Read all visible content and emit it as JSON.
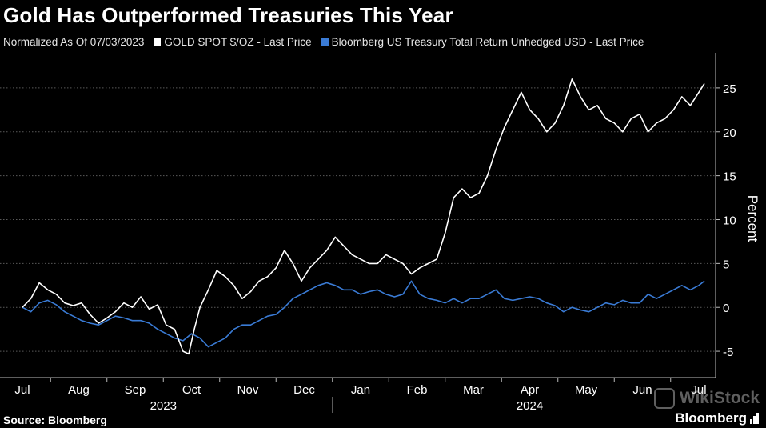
{
  "chart_data": {
    "type": "line",
    "title": "Gold Has Outperformed Treasuries This Year",
    "subtitle": "Normalized As Of 07/03/2023",
    "ylabel": "Percent",
    "ylim": [
      -8,
      29
    ],
    "yticks": [
      -5,
      0,
      5,
      10,
      15,
      20,
      25
    ],
    "grid": true,
    "legend_position": "top",
    "x_months": [
      "Jul",
      "Aug",
      "Sep",
      "Oct",
      "Nov",
      "Dec",
      "Jan",
      "Feb",
      "Mar",
      "Apr",
      "May",
      "Jun",
      "Jul"
    ],
    "x_years": [
      "2023",
      "2024"
    ],
    "x_range_months": [
      0,
      12.3
    ],
    "series": [
      {
        "name": "GOLD SPOT $/OZ - Last Price",
        "color": "#ffffff",
        "x": [
          0,
          0.15,
          0.3,
          0.45,
          0.6,
          0.75,
          0.9,
          1.05,
          1.2,
          1.35,
          1.5,
          1.65,
          1.8,
          1.95,
          2.1,
          2.25,
          2.4,
          2.55,
          2.7,
          2.85,
          2.95,
          3.05,
          3.15,
          3.3,
          3.45,
          3.6,
          3.75,
          3.9,
          4.05,
          4.2,
          4.35,
          4.5,
          4.65,
          4.8,
          4.95,
          5.1,
          5.25,
          5.4,
          5.55,
          5.7,
          5.85,
          6.0,
          6.15,
          6.3,
          6.45,
          6.6,
          6.75,
          6.9,
          7.05,
          7.2,
          7.35,
          7.5,
          7.65,
          7.8,
          7.95,
          8.1,
          8.25,
          8.4,
          8.55,
          8.7,
          8.85,
          9.0,
          9.15,
          9.3,
          9.45,
          9.6,
          9.75,
          9.9,
          10.05,
          10.2,
          10.35,
          10.5,
          10.65,
          10.8,
          10.95,
          11.1,
          11.25,
          11.4,
          11.55,
          11.7,
          11.85,
          12.0,
          12.1
        ],
        "values": [
          0,
          1.0,
          2.8,
          2.0,
          1.5,
          0.5,
          0.2,
          0.5,
          -0.8,
          -1.8,
          -1.2,
          -0.5,
          0.5,
          0.0,
          1.2,
          -0.2,
          0.3,
          -2.0,
          -2.5,
          -5.0,
          -5.3,
          -2.5,
          0.0,
          2.0,
          4.2,
          3.5,
          2.5,
          1.0,
          1.8,
          3.0,
          3.5,
          4.5,
          6.5,
          5.0,
          3.0,
          4.5,
          5.5,
          6.5,
          8.0,
          7.0,
          6.0,
          5.5,
          5.0,
          5.0,
          6.0,
          5.5,
          5.0,
          3.8,
          4.5,
          5.0,
          5.5,
          8.5,
          12.5,
          13.5,
          12.5,
          13.0,
          15.0,
          18.0,
          20.5,
          22.5,
          24.5,
          22.5,
          21.5,
          20.0,
          21.0,
          23.0,
          26.0,
          24.0,
          22.5,
          23.0,
          21.5,
          21.0,
          20.0,
          21.5,
          22.0,
          20.0,
          21.0,
          21.5,
          22.5,
          24.0,
          23.0,
          24.5,
          25.5
        ]
      },
      {
        "name": "Bloomberg US Treasury Total Return Unhedged USD - Last Price",
        "color": "#3a7bd5",
        "x": [
          0,
          0.15,
          0.3,
          0.45,
          0.6,
          0.75,
          0.9,
          1.05,
          1.2,
          1.35,
          1.5,
          1.65,
          1.8,
          1.95,
          2.1,
          2.25,
          2.4,
          2.55,
          2.7,
          2.85,
          3.0,
          3.15,
          3.3,
          3.45,
          3.6,
          3.75,
          3.9,
          4.05,
          4.2,
          4.35,
          4.5,
          4.65,
          4.8,
          4.95,
          5.1,
          5.25,
          5.4,
          5.55,
          5.7,
          5.85,
          6.0,
          6.15,
          6.3,
          6.45,
          6.6,
          6.75,
          6.9,
          7.05,
          7.2,
          7.35,
          7.5,
          7.65,
          7.8,
          7.95,
          8.1,
          8.25,
          8.4,
          8.55,
          8.7,
          8.85,
          9.0,
          9.15,
          9.3,
          9.45,
          9.6,
          9.75,
          9.9,
          10.05,
          10.2,
          10.35,
          10.5,
          10.65,
          10.8,
          10.95,
          11.1,
          11.25,
          11.4,
          11.55,
          11.7,
          11.85,
          12.0,
          12.1
        ],
        "values": [
          0,
          -0.5,
          0.5,
          0.8,
          0.3,
          -0.5,
          -1.0,
          -1.5,
          -1.8,
          -2.0,
          -1.5,
          -1.0,
          -1.2,
          -1.5,
          -1.5,
          -1.8,
          -2.5,
          -3.0,
          -3.5,
          -3.8,
          -3.0,
          -3.5,
          -4.5,
          -4.0,
          -3.5,
          -2.5,
          -2.0,
          -2.0,
          -1.5,
          -1.0,
          -0.8,
          0.0,
          1.0,
          1.5,
          2.0,
          2.5,
          2.8,
          2.5,
          2.0,
          2.0,
          1.5,
          1.8,
          2.0,
          1.5,
          1.2,
          1.5,
          3.0,
          1.5,
          1.0,
          0.8,
          0.5,
          1.0,
          0.5,
          1.0,
          1.0,
          1.5,
          2.0,
          1.0,
          0.8,
          1.0,
          1.2,
          1.0,
          0.5,
          0.2,
          -0.5,
          0.0,
          -0.3,
          -0.5,
          0.0,
          0.5,
          0.3,
          0.8,
          0.5,
          0.5,
          1.5,
          1.0,
          1.5,
          2.0,
          2.5,
          2.0,
          2.5,
          3.0
        ]
      }
    ]
  },
  "footer": {
    "source": "Source: Bloomberg",
    "brand": "Bloomberg",
    "watermark": "WikiStock"
  }
}
